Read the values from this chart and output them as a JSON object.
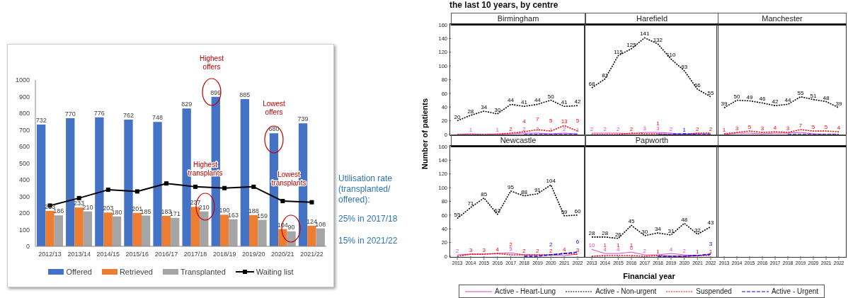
{
  "chart_data": [
    {
      "type": "bar",
      "categories": [
        "2012/13",
        "2013/14",
        "2014/15",
        "2015/16",
        "2016/17",
        "2017/18",
        "2018/19",
        "2019/20",
        "2020/21",
        "2021/22"
      ],
      "ylim": [
        0,
        1000
      ],
      "yticks": [
        0,
        100,
        200,
        300,
        400,
        500,
        600,
        700,
        800,
        900,
        1000
      ],
      "legend": "bottom",
      "marker": "square",
      "series": [
        {
          "name": "Offered",
          "type": "bar",
          "color": "#4472c4",
          "values": [
            732,
            770,
            776,
            762,
            748,
            829,
            899,
            885,
            680,
            739
          ],
          "value_labels": [
            "732",
            "770",
            "776",
            "762",
            "748",
            "829",
            "899",
            "885",
            "680",
            "739"
          ]
        },
        {
          "name": "Retrieved",
          "type": "bar",
          "color": "#ed7d31",
          "values": [
            213,
            233,
            203,
            201,
            183,
            237,
            190,
            188,
            104,
            124
          ],
          "value_labels": [
            "213",
            "233",
            "203",
            "201",
            "183",
            "237",
            "190",
            "188",
            "104",
            "124"
          ]
        },
        {
          "name": "Transplanted",
          "type": "bar",
          "color": "#a5a5a5",
          "values": [
            186,
            210,
            180,
            185,
            171,
            210,
            163,
            159,
            90,
            108
          ],
          "value_labels": [
            "186",
            "210",
            "180",
            "185",
            "171",
            "210",
            "163",
            "159",
            "90",
            "108"
          ]
        },
        {
          "name": "Waiting list",
          "type": "line",
          "color": "#000000",
          "values": [
            245,
            290,
            340,
            330,
            378,
            358,
            350,
            358,
            272,
            265
          ]
        }
      ],
      "annotations": [
        "Highest offers",
        "Lowest offers",
        "Highest transplants",
        "Lowest transplants",
        "Utilisation rate (transplanted/ offered):",
        "25% in 2017/18",
        "15% in 2021/22"
      ]
    },
    {
      "type": "line",
      "title": "Birmingham",
      "annotations": [
        "the last 10 years, by centre"
      ],
      "categories": [
        "2013",
        "2014",
        "2015",
        "2016",
        "2017",
        "2018",
        "2019",
        "2020",
        "2021",
        "2022"
      ],
      "ylim": [
        0,
        160
      ],
      "yticks": [
        0,
        20,
        40,
        60,
        80,
        100,
        120,
        140,
        160
      ],
      "tick_labels": "y",
      "series": [
        {
          "color": "#dd44cc",
          "line_style": "solid",
          "values": [
            0,
            1,
            0,
            1,
            1,
            2,
            2,
            1,
            2,
            1
          ],
          "value_labels": [
            null,
            "1",
            null,
            "1",
            null,
            "2",
            "2",
            "1",
            "2",
            "1"
          ]
        },
        {
          "color": "#000000",
          "line_style": "dotted",
          "values": [
            20,
            28,
            34,
            30,
            44,
            41,
            44,
            50,
            41,
            42
          ],
          "data_labels": true
        },
        {
          "color": "#ff0000",
          "line_style": "dotted",
          "values": [
            0,
            0,
            0,
            0,
            2,
            4,
            7,
            5,
            13,
            5
          ],
          "value_labels": [
            null,
            null,
            null,
            null,
            "2",
            "4",
            "7",
            "5",
            "13",
            "5"
          ]
        },
        {
          "color": "#0000ff",
          "line_style": "dashed",
          "values": [
            null,
            null,
            null,
            null,
            null,
            0,
            0,
            0,
            0,
            0
          ]
        }
      ]
    },
    {
      "type": "line",
      "title": "Harefield",
      "categories": [
        "2013",
        "2014",
        "2015",
        "2016",
        "2017",
        "2018",
        "2019",
        "2020",
        "2021",
        "2022"
      ],
      "ylim": [
        0,
        160
      ],
      "yticks": [
        0,
        20,
        40,
        60,
        80,
        100,
        120,
        140,
        160
      ],
      "tick_labels": false,
      "series": [
        {
          "color": "#dd44cc",
          "line_style": "solid",
          "values": [
            2,
            2,
            2,
            1,
            3,
            3,
            2,
            0,
            1,
            1
          ],
          "value_labels": [
            "2",
            "2",
            "2",
            null,
            "3",
            "3",
            "2",
            null,
            null,
            null
          ]
        },
        {
          "color": "#000000",
          "line_style": "dotted",
          "values": [
            68,
            81,
            115,
            125,
            141,
            132,
            110,
            93,
            66,
            55
          ],
          "data_labels": true
        },
        {
          "color": "#ff0000",
          "line_style": "dotted",
          "values": [
            0,
            0,
            0,
            2,
            1,
            1,
            0,
            0,
            2,
            2
          ],
          "value_labels": [
            null,
            null,
            null,
            "2",
            null,
            "1",
            null,
            null,
            "2",
            "2"
          ]
        },
        {
          "color": "#0000ff",
          "line_style": "dashed",
          "values": [
            null,
            null,
            null,
            null,
            null,
            0,
            0,
            1,
            0,
            0
          ],
          "value_labels": [
            null,
            null,
            null,
            null,
            null,
            null,
            null,
            "1",
            null,
            null
          ]
        }
      ]
    },
    {
      "type": "line",
      "title": "Manchester",
      "categories": [
        "2013",
        "2014",
        "2015",
        "2016",
        "2017",
        "2018",
        "2019",
        "2020",
        "2021",
        "2022"
      ],
      "ylim": [
        0,
        160
      ],
      "yticks": [
        0,
        20,
        40,
        60,
        80,
        100,
        120,
        140,
        160
      ],
      "tick_labels": false,
      "series": [
        {
          "color": "#dd44cc",
          "line_style": "solid",
          "values": [
            0,
            2,
            2,
            1,
            2,
            2,
            3,
            1,
            0,
            0
          ]
        },
        {
          "color": "#000000",
          "line_style": "dotted",
          "values": [
            39,
            50,
            49,
            46,
            42,
            44,
            55,
            51,
            48,
            39
          ],
          "data_labels": true
        },
        {
          "color": "#ff0000",
          "line_style": "dotted",
          "values": [
            1,
            3,
            5,
            3,
            4,
            3,
            7,
            5,
            5,
            4
          ],
          "data_labels": true
        },
        {
          "color": "#0000ff",
          "line_style": "dashed",
          "values": [
            null,
            null,
            null,
            null,
            null,
            0,
            0,
            0,
            0,
            0
          ]
        }
      ]
    },
    {
      "type": "line",
      "title": "Newcastle",
      "ylabel": "Number of patients",
      "legend": "bottom",
      "categories": [
        "2013",
        "2014",
        "2015",
        "2016",
        "2017",
        "2018",
        "2019",
        "2020",
        "2021",
        "2022"
      ],
      "ylim": [
        0,
        160
      ],
      "yticks": [
        0,
        20,
        40,
        60,
        80,
        100,
        120,
        140,
        160
      ],
      "series": [
        {
          "name": "Active - Heart-Lung",
          "color": "#dd44cc",
          "line_style": "solid",
          "values": [
            2,
            3,
            3,
            4,
            5,
            2,
            2,
            2,
            1,
            3
          ],
          "value_labels": [
            "2",
            null,
            null,
            null,
            "5",
            null,
            null,
            null,
            null,
            null
          ]
        },
        {
          "name": "Active - Non-urgent",
          "color": "#000000",
          "line_style": "dotted",
          "values": [
            55,
            71,
            85,
            61,
            95,
            88,
            91,
            104,
            59,
            60
          ],
          "data_labels": true
        },
        {
          "name": "Suspended",
          "color": "#ff0000",
          "line_style": "dotted",
          "values": [
            0,
            3,
            3,
            4,
            2,
            2,
            2,
            2,
            4,
            3
          ],
          "value_labels": [
            null,
            "3",
            "3",
            "4",
            "2",
            "2",
            "2",
            "2",
            "4",
            "3"
          ]
        },
        {
          "name": "Active - Urgent",
          "color": "#0000ff",
          "line_style": "dashed",
          "values": [
            null,
            null,
            null,
            null,
            null,
            0,
            0,
            2,
            4,
            6
          ],
          "value_labels": [
            null,
            null,
            null,
            null,
            null,
            null,
            null,
            "2",
            null,
            "6"
          ]
        }
      ]
    },
    {
      "type": "line",
      "title": "Papworth",
      "xlabel": "Financial year",
      "categories": [
        "2013",
        "2014",
        "2015",
        "2016",
        "2017",
        "2018",
        "2019",
        "2020",
        "2021",
        "2022"
      ],
      "ylim": [
        0,
        160
      ],
      "yticks": [
        0,
        20,
        40,
        60,
        80,
        100,
        120,
        140,
        160
      ],
      "tick_labels": "x",
      "series": [
        {
          "color": "#dd44cc",
          "line_style": "solid",
          "values": [
            10,
            4,
            4,
            6,
            2,
            2,
            4,
            2,
            1,
            3
          ],
          "value_labels": [
            "10",
            "4",
            "4",
            "6",
            "2",
            null,
            "4",
            "2",
            null,
            null
          ]
        },
        {
          "color": "#000000",
          "line_style": "dotted",
          "values": [
            28,
            28,
            26,
            45,
            30,
            34,
            31,
            48,
            32,
            43
          ],
          "data_labels": true
        },
        {
          "color": "#ff0000",
          "line_style": "dotted",
          "values": [
            0,
            1,
            1,
            1,
            0,
            1,
            0,
            0,
            1,
            1
          ],
          "value_labels": [
            null,
            "1",
            "1",
            "1",
            null,
            "1",
            null,
            null,
            "1",
            "1"
          ]
        },
        {
          "color": "#0000ff",
          "line_style": "dashed",
          "values": [
            null,
            null,
            null,
            null,
            null,
            0,
            0,
            0,
            1,
            3
          ],
          "value_labels": [
            null,
            null,
            null,
            null,
            null,
            null,
            null,
            null,
            null,
            "3"
          ]
        }
      ]
    },
    {
      "type": "line",
      "categories": [
        "2013",
        "2014",
        "2015",
        "2016",
        "2017",
        "2018",
        "2019",
        "2020",
        "2021",
        "2022"
      ],
      "ylim": [
        0,
        160
      ],
      "yticks": [
        0,
        20,
        40,
        60,
        80,
        100,
        120,
        140,
        160
      ],
      "tick_labels": "x"
    }
  ]
}
